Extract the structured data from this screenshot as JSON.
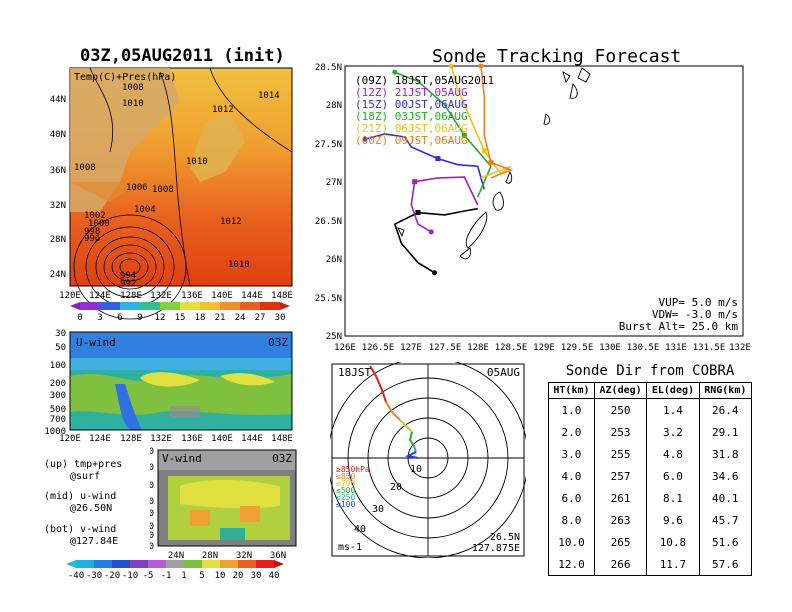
{
  "init_title": "03Z,05AUG2011 (init)",
  "tracking_title": "Sonde Tracking Forecast",
  "map_panel": {
    "label": "Temp(C)+Pres(hPa)",
    "x_ticks": [
      "120E",
      "124E",
      "128E",
      "132E",
      "136E",
      "140E",
      "144E",
      "148E"
    ],
    "y_ticks": [
      "44N",
      "40N",
      "36N",
      "32N",
      "28N",
      "24N"
    ],
    "pressure_labels": [
      "1008",
      "1010",
      "1012",
      "1014",
      "1008",
      "1010",
      "1006",
      "1008",
      "1004",
      "1012",
      "1002",
      "1000",
      "998",
      "996",
      "994",
      "992",
      "1010",
      "990"
    ],
    "colorbar_ticks": [
      "0",
      "3",
      "6",
      "9",
      "12",
      "15",
      "18",
      "21",
      "24",
      "27",
      "30"
    ]
  },
  "uwind_panel": {
    "label": "U-wind",
    "time": "03Z",
    "y_ticks": [
      "30",
      "50",
      "100",
      "200",
      "300",
      "500",
      "700",
      "1000"
    ],
    "x_ticks": [
      "120E",
      "124E",
      "128E",
      "132E",
      "136E",
      "140E",
      "144E",
      "148E"
    ]
  },
  "vwind_panel": {
    "label": "V-wind",
    "time": "03Z",
    "y_ticks": [
      "30",
      "50",
      "100",
      "200",
      "300",
      "500",
      "700",
      "1000"
    ],
    "x_ticks": [
      "24N",
      "28N",
      "32N",
      "36N"
    ]
  },
  "notes": [
    {
      "line1": "(up) tmp+pres",
      "line2": "@surf"
    },
    {
      "line1": "(mid) u-wind",
      "line2": "@26.50N"
    },
    {
      "line1": "(bot) v-wind",
      "line2": "@127.84E"
    }
  ],
  "wind_colorbar_ticks": [
    "-40",
    "-30",
    "-20",
    "-10",
    "-5",
    "-1",
    "1",
    "5",
    "10",
    "20",
    "30",
    "40"
  ],
  "tracking": {
    "x_ticks": [
      "126E",
      "126.5E",
      "127E",
      "127.5E",
      "128E",
      "128.5E",
      "129E",
      "129.5E",
      "130E",
      "130.5E",
      "131E",
      "131.5E",
      "132E"
    ],
    "y_ticks": [
      "28.5N",
      "28N",
      "27.5N",
      "27N",
      "26.5N",
      "26N",
      "25.5N",
      "25N"
    ],
    "legend": [
      {
        "text": "(09Z) 18JST,05AUG2011",
        "color": "#000000"
      },
      {
        "text": "(12Z) 21JST,05AUG",
        "color": "#a020c0"
      },
      {
        "text": "(15Z) 00JST,06AUG",
        "color": "#3030e0"
      },
      {
        "text": "(18Z) 03JST,06AUG",
        "color": "#20b020"
      },
      {
        "text": "(21Z) 06JST,06AUG",
        "color": "#f0c020"
      },
      {
        "text": "(00Z) 09JST,06AUG",
        "color": "#f08020"
      }
    ],
    "params": [
      "VUP= 5.0 m/s",
      "VDW= -3.0 m/s",
      "Burst Alt= 25.0 km"
    ]
  },
  "hodograph": {
    "time": "18JST",
    "date": "05AUG",
    "levels": [
      {
        "text": "≥850hPa",
        "color": "#e02020"
      },
      {
        "text": "≤850",
        "color": "#f08020"
      },
      {
        "text": "≤700",
        "color": "#e0c020"
      },
      {
        "text": "≤500",
        "color": "#20b020"
      },
      {
        "text": "≤250",
        "color": "#20b0b0"
      },
      {
        "text": "≤100",
        "color": "#2040e0"
      }
    ],
    "ring_labels": [
      "10",
      "20",
      "30",
      "40"
    ],
    "unit": "ms-1",
    "lat": "26.5N",
    "lon": "127.875E"
  },
  "sonde_table": {
    "title": "Sonde Dir from COBRA",
    "headers": [
      "HT(km)",
      "AZ(deg)",
      "EL(deg)",
      "RNG(km)"
    ],
    "rows": [
      [
        "1.0",
        "250",
        "1.4",
        "26.4"
      ],
      [
        "2.0",
        "253",
        "3.2",
        "29.1"
      ],
      [
        "3.0",
        "255",
        "4.8",
        "31.8"
      ],
      [
        "4.0",
        "257",
        "6.0",
        "34.6"
      ],
      [
        "6.0",
        "261",
        "8.1",
        "40.1"
      ],
      [
        "8.0",
        "263",
        "9.6",
        "45.7"
      ],
      [
        "10.0",
        "265",
        "10.8",
        "51.6"
      ],
      [
        "12.0",
        "266",
        "11.7",
        "57.6"
      ]
    ]
  },
  "chart_data": [
    {
      "type": "line",
      "title": "Sonde Tracking Forecast",
      "xlim": [
        126,
        132
      ],
      "ylim": [
        25,
        28.5
      ],
      "series": [
        {
          "name": "(09Z) 18JST,05AUG2011",
          "x": [
            127.35,
            127.1,
            126.85,
            126.75,
            127.1,
            127.5,
            127.8,
            128.0
          ],
          "y": [
            25.82,
            25.95,
            26.2,
            26.45,
            26.6,
            26.57,
            26.62,
            26.65
          ]
        },
        {
          "name": "(12Z) 21JST,05AUG",
          "x": [
            127.3,
            127.1,
            127.0,
            127.05,
            127.4,
            127.8,
            128.0
          ],
          "y": [
            26.35,
            26.45,
            26.7,
            27.0,
            27.05,
            27.06,
            26.7
          ]
        },
        {
          "name": "(15Z) 00JST,06AUG",
          "x": [
            126.3,
            126.6,
            126.9,
            127.0,
            127.4,
            127.7,
            128.0,
            128.1
          ],
          "y": [
            27.55,
            27.62,
            27.58,
            27.45,
            27.3,
            27.22,
            27.2,
            26.9
          ]
        },
        {
          "name": "(18Z) 03JST,06AUG",
          "x": [
            126.75,
            127.1,
            127.5,
            127.8,
            128.05,
            128.2,
            128.0
          ],
          "y": [
            28.42,
            28.3,
            28.0,
            27.6,
            27.35,
            27.2,
            26.8
          ]
        },
        {
          "name": "(21Z) 06JST,06AUG",
          "x": [
            127.6,
            127.7,
            127.9,
            128.1,
            128.35,
            128.5,
            128.05
          ],
          "y": [
            28.5,
            28.2,
            27.8,
            27.4,
            27.1,
            27.2,
            27.05
          ]
        },
        {
          "name": "(00Z) 09JST,06AUG",
          "x": [
            128.05,
            128.1,
            128.1,
            128.2,
            128.5,
            128.2
          ],
          "y": [
            28.5,
            28.1,
            27.6,
            27.25,
            27.15,
            27.05
          ]
        }
      ]
    },
    {
      "type": "table",
      "title": "Sonde Dir from COBRA",
      "columns": [
        "HT(km)",
        "AZ(deg)",
        "EL(deg)",
        "RNG(km)"
      ],
      "rows": [
        [
          1.0,
          250,
          1.4,
          26.4
        ],
        [
          2.0,
          253,
          3.2,
          29.1
        ],
        [
          3.0,
          255,
          4.8,
          31.8
        ],
        [
          4.0,
          257,
          6.0,
          34.6
        ],
        [
          6.0,
          261,
          8.1,
          40.1
        ],
        [
          8.0,
          263,
          9.6,
          45.7
        ],
        [
          10.0,
          265,
          10.8,
          51.6
        ],
        [
          12.0,
          266,
          11.7,
          57.6
        ]
      ]
    }
  ]
}
